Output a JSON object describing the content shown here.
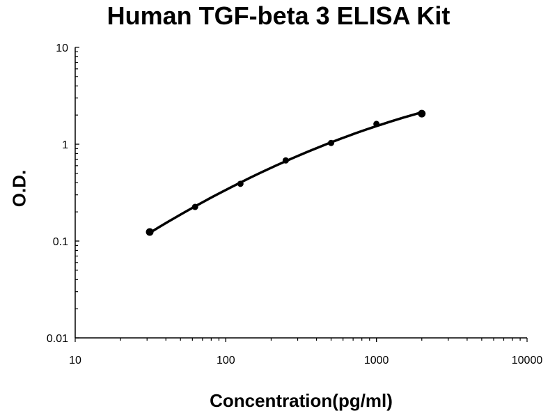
{
  "chart_data": {
    "type": "line",
    "title": "Human TGF-beta 3 ELISA Kit",
    "xlabel": "Concentration(pg/ml)",
    "ylabel": "O.D.",
    "xscale": "log",
    "yscale": "log",
    "xlim": [
      10,
      10000
    ],
    "ylim": [
      0.01,
      10
    ],
    "x_ticks": [
      "10",
      "100",
      "1000",
      "10000"
    ],
    "y_ticks": [
      "0.01",
      "0.1",
      "1",
      "10"
    ],
    "grid": false,
    "series": [
      {
        "style": "points with fitted curve",
        "color": "#000000",
        "x": [
          31.25,
          62.5,
          125,
          250,
          500,
          1000,
          2000
        ],
        "y": [
          0.124,
          0.225,
          0.39,
          0.68,
          1.03,
          1.62,
          2.07
        ]
      }
    ]
  }
}
